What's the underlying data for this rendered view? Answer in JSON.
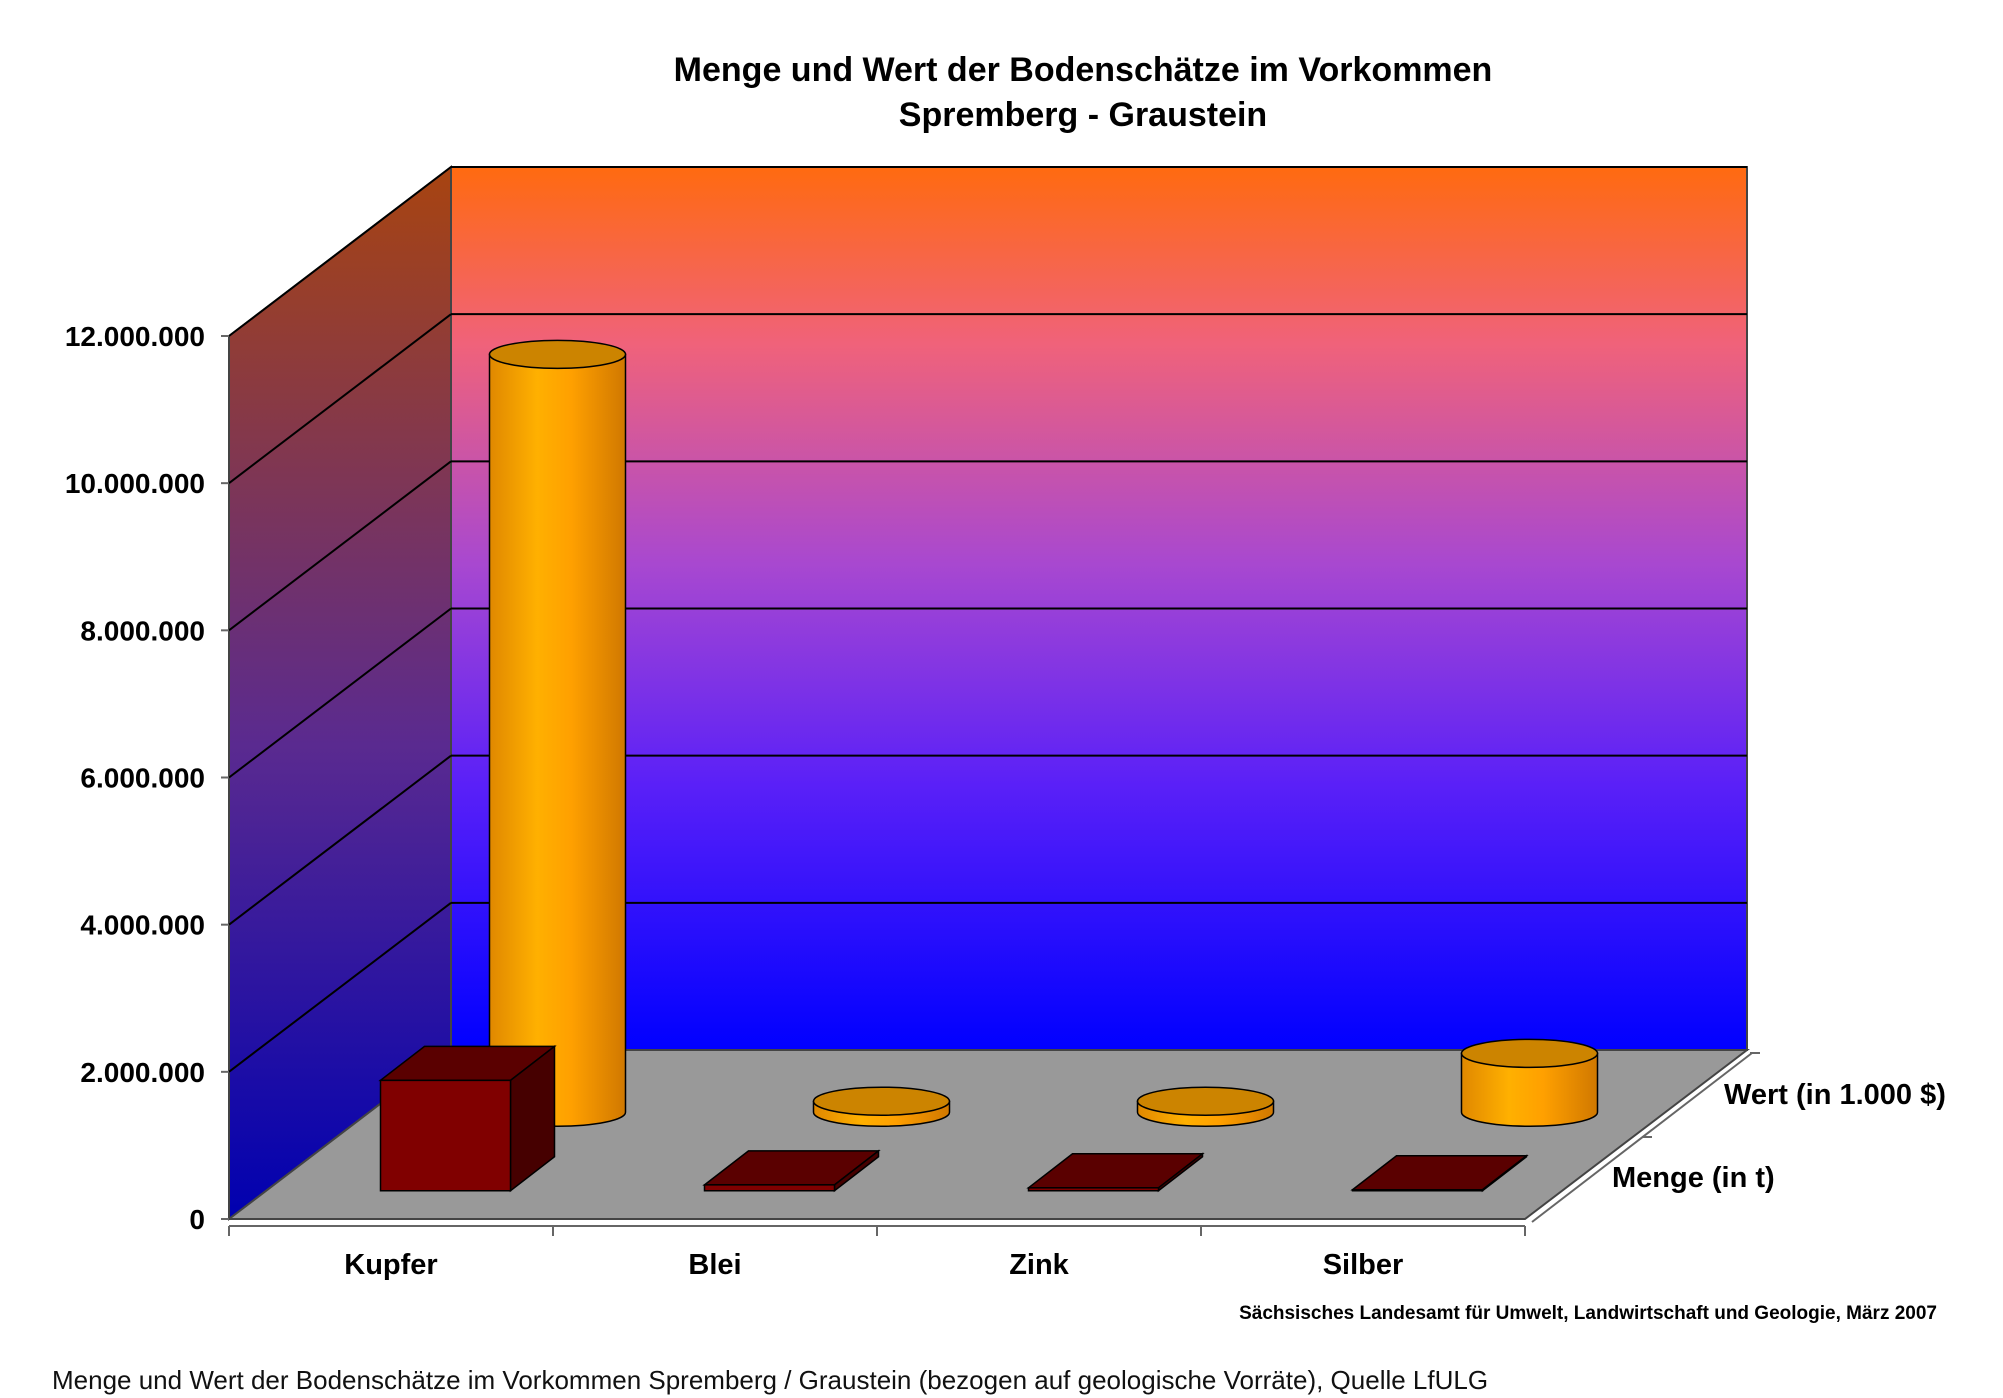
{
  "caption": "Menge und Wert der Bodenschätze im Vorkommen Spremberg / Graustein (bezogen auf geologische Vorräte), Quelle LfULG",
  "chart_data": {
    "type": "bar",
    "title": "Menge und Wert der Bodenschätze im Vorkommen",
    "subtitle": "Spremberg - Graustein",
    "source": "Sächsisches Landesamt für Umwelt, Landwirtschaft und Geologie, März 2007",
    "categories": [
      "Kupfer",
      "Blei",
      "Zink",
      "Silber"
    ],
    "series": [
      {
        "name": "Menge (in t)",
        "shape": "box",
        "color": "#800000",
        "values": [
          1500000,
          80000,
          40000,
          2000
        ]
      },
      {
        "name": "Wert (in 1.000 $)",
        "shape": "cylinder",
        "color": "#FFA500",
        "values": [
          10300000,
          150000,
          150000,
          800000
        ]
      }
    ],
    "ylim": [
      0,
      12000000
    ],
    "ytick_labels": [
      "0",
      "2.000.000",
      "4.000.000",
      "6.000.000",
      "8.000.000",
      "10.000.000",
      "12.000.000"
    ],
    "grid": true,
    "wall_gradient": [
      "#0000FF",
      "#7B2FF0",
      "#C04BC0",
      "#F0626E",
      "#FF6A10"
    ]
  }
}
